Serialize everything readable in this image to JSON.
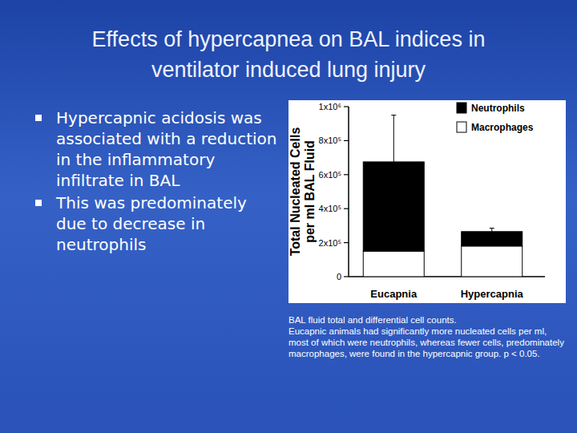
{
  "title": [
    "Effects of hypercapnea on BAL indices  in",
    "ventilator induced lung injury"
  ],
  "bullets": [
    "Hypercapnic acidosis was associated with a reduction in the inflammatory infiltrate in BAL",
    "This was predominately due to decrease in neutrophils"
  ],
  "caption": [
    "BAL fluid total and differential cell counts.",
    "Eucapnic animals had significantly more nucleated cells per ml, most of which were neutrophils, whereas fewer cells, predominately macrophages, were found in the hypercapnic group.  p < 0.05."
  ],
  "chart_data": {
    "type": "bar",
    "stacked": true,
    "legend": "top-right",
    "y_label": [
      "Total Nucleated Cells",
      "per ml BAL Fluid"
    ],
    "categories": [
      "Eucapnia",
      "Hypercapnia"
    ],
    "series": [
      {
        "name": "Macrophages",
        "color": "#ffffff",
        "values": [
          150000,
          180000
        ]
      },
      {
        "name": "Neutrophils",
        "color": "#000000",
        "values": [
          525000,
          85000
        ],
        "errors": [
          275000,
          20000
        ]
      }
    ],
    "ylim": [
      0,
      1000000
    ],
    "yticks": [
      0,
      {
        "value": 200000,
        "label": "2x10⁵"
      },
      {
        "value": 400000,
        "label": "4x10⁵"
      },
      {
        "value": 600000,
        "label": "6x10⁵"
      },
      {
        "value": 800000,
        "label": "8x10⁵"
      },
      {
        "value": 1000000,
        "label": "1x10⁶"
      }
    ]
  }
}
